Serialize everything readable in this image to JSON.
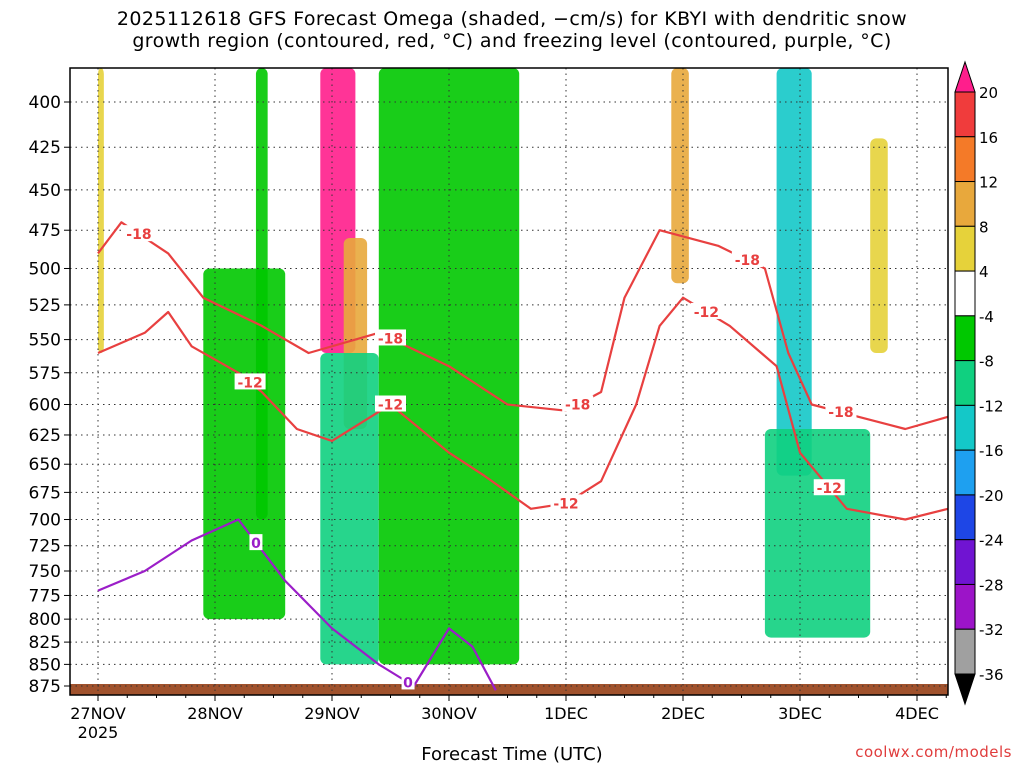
{
  "title_line1": "2025112618 GFS Forecast Omega (shaded, −cm/s) for KBYI with dendritic snow",
  "title_line2": "growth region (contoured, red, °C) and freezing level (contoured, purple, °C)",
  "xlabel": "Forecast Time (UTC)",
  "credit": "coolwx.com/models",
  "chart_data": {
    "type": "heatmap",
    "title": "2025112618 GFS Forecast Omega (shaded, −cm/s) for KBYI with dendritic snow growth region (contoured, red, °C) and freezing level (contoured, purple, °C)",
    "xlabel": "Forecast Time (UTC)",
    "ylabel": "",
    "y_axis": {
      "ticks": [
        400,
        425,
        450,
        475,
        500,
        525,
        550,
        575,
        600,
        625,
        650,
        675,
        700,
        725,
        750,
        775,
        800,
        825,
        850,
        875
      ],
      "range": [
        375,
        890
      ],
      "scale": "log-pressure (inverted)"
    },
    "x_axis": {
      "range_days": [
        0,
        7.4
      ],
      "ticks": [
        {
          "day": 0,
          "label": "27NOV",
          "sublabel": "2025"
        },
        {
          "day": 1,
          "label": "28NOV"
        },
        {
          "day": 2,
          "label": "29NOV"
        },
        {
          "day": 3,
          "label": "30NOV"
        },
        {
          "day": 4,
          "label": "1DEC"
        },
        {
          "day": 5,
          "label": "2DEC"
        },
        {
          "day": 6,
          "label": "3DEC"
        },
        {
          "day": 7,
          "label": "4DEC"
        }
      ]
    },
    "grid": true,
    "colorbar": {
      "labels": [
        20,
        16,
        12,
        8,
        4,
        -4,
        -8,
        -12,
        -16,
        -20,
        -24,
        -28,
        -32,
        -36
      ],
      "colors": [
        "#ff1e8c",
        "#f03c3c",
        "#f47a28",
        "#e8a83c",
        "#e6d23a",
        "#ffffff",
        "#00c800",
        "#10d080",
        "#14c8c8",
        "#1ea0f0",
        "#1e46e6",
        "#7014d2",
        "#9c14c8",
        "#a0a0a0",
        "#000000"
      ]
    },
    "omega_regions": [
      {
        "day_range": [
          0.0,
          0.05
        ],
        "p_range": [
          380,
          560
        ],
        "band": "4 to 8"
      },
      {
        "day_range": [
          0.9,
          1.6
        ],
        "p_range": [
          500,
          800
        ],
        "band": "-4 to -8"
      },
      {
        "day_range": [
          1.35,
          1.45
        ],
        "p_range": [
          380,
          700
        ],
        "band": "-4 to -8"
      },
      {
        "day_range": [
          1.9,
          2.2
        ],
        "p_range": [
          375,
          560
        ],
        "band": "16 to 20"
      },
      {
        "day_range": [
          2.1,
          2.3
        ],
        "p_range": [
          480,
          620
        ],
        "band": "8 to 12"
      },
      {
        "day_range": [
          1.9,
          2.4
        ],
        "p_range": [
          560,
          850
        ],
        "band": "-8 to -12"
      },
      {
        "day_range": [
          2.4,
          3.6
        ],
        "p_range": [
          380,
          850
        ],
        "band": "-4 to -8"
      },
      {
        "day_range": [
          4.9,
          5.05
        ],
        "p_range": [
          380,
          510
        ],
        "band": "8 to 12"
      },
      {
        "day_range": [
          5.8,
          6.1
        ],
        "p_range": [
          380,
          660
        ],
        "band": "-12 to -16"
      },
      {
        "day_range": [
          5.7,
          6.6
        ],
        "p_range": [
          620,
          820
        ],
        "band": "-8 to -12"
      },
      {
        "day_range": [
          6.6,
          6.75
        ],
        "p_range": [
          420,
          560
        ],
        "band": "4 to 8"
      }
    ],
    "series": [
      {
        "name": "-18",
        "color": "#e84040",
        "points": [
          [
            0.0,
            490
          ],
          [
            0.2,
            470
          ],
          [
            0.6,
            490
          ],
          [
            0.9,
            520
          ],
          [
            1.4,
            540
          ],
          [
            1.8,
            560
          ],
          [
            2.4,
            545
          ],
          [
            3.0,
            570
          ],
          [
            3.5,
            600
          ],
          [
            4.0,
            605
          ],
          [
            4.3,
            590
          ],
          [
            4.5,
            520
          ],
          [
            4.8,
            475
          ],
          [
            5.3,
            485
          ],
          [
            5.7,
            500
          ],
          [
            5.9,
            560
          ],
          [
            6.1,
            600
          ],
          [
            6.5,
            610
          ],
          [
            6.9,
            620
          ],
          [
            7.4,
            610
          ]
        ],
        "label_days": [
          0.35,
          2.5,
          4.1,
          5.55,
          6.35
        ]
      },
      {
        "name": "-12",
        "color": "#e84040",
        "points": [
          [
            0.0,
            560
          ],
          [
            0.4,
            545
          ],
          [
            0.6,
            530
          ],
          [
            0.8,
            555
          ],
          [
            1.2,
            575
          ],
          [
            1.4,
            590
          ],
          [
            1.7,
            620
          ],
          [
            2.0,
            630
          ],
          [
            2.5,
            600
          ],
          [
            3.0,
            640
          ],
          [
            3.3,
            660
          ],
          [
            3.7,
            690
          ],
          [
            4.0,
            685
          ],
          [
            4.3,
            665
          ],
          [
            4.6,
            600
          ],
          [
            4.8,
            540
          ],
          [
            5.0,
            520
          ],
          [
            5.4,
            540
          ],
          [
            5.8,
            570
          ],
          [
            6.0,
            640
          ],
          [
            6.4,
            690
          ],
          [
            6.9,
            700
          ],
          [
            7.4,
            690
          ]
        ],
        "label_days": [
          1.3,
          2.5,
          4.0,
          5.2,
          6.25
        ]
      },
      {
        "name": "0",
        "color": "#9b1ec8",
        "points": [
          [
            0.0,
            770
          ],
          [
            0.4,
            750
          ],
          [
            0.8,
            720
          ],
          [
            1.2,
            700
          ],
          [
            1.6,
            760
          ],
          [
            2.0,
            810
          ],
          [
            2.4,
            850
          ],
          [
            2.7,
            875
          ],
          [
            3.0,
            810
          ],
          [
            3.2,
            830
          ],
          [
            3.4,
            880
          ]
        ],
        "label_days": [
          1.35,
          2.65
        ]
      }
    ]
  }
}
